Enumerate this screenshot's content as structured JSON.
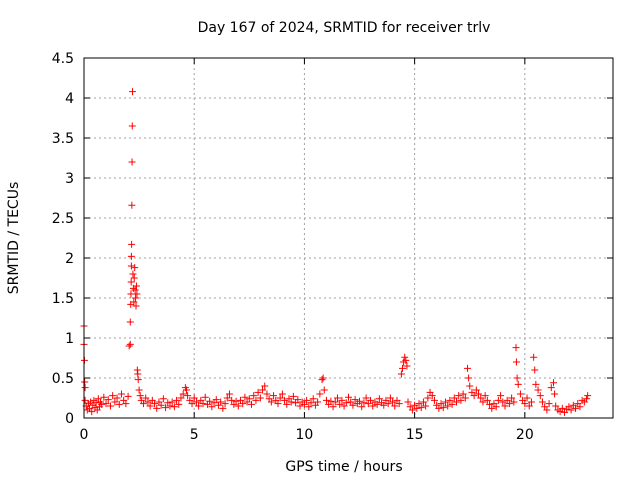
{
  "chart_data": {
    "type": "scatter",
    "title": "Day 167 of 2024, SRMTID for receiver trlv",
    "xlabel": "GPS time / hours",
    "ylabel": "SRMTID / TECUs",
    "xlim": [
      0,
      24
    ],
    "ylim": [
      0,
      4.5
    ],
    "xticks": [
      "0",
      "5",
      "10",
      "15",
      "20"
    ],
    "xtick_values": [
      0,
      5,
      10,
      15,
      20
    ],
    "yticks": [
      "0",
      "0.5",
      "1",
      "1.5",
      "2",
      "2.5",
      "3",
      "3.5",
      "4",
      "4.5"
    ],
    "ytick_values": [
      0,
      0.5,
      1,
      1.5,
      2,
      2.5,
      3,
      3.5,
      4,
      4.5
    ],
    "grid": true,
    "marker": "+",
    "marker_color": "#ff0000",
    "series": [
      {
        "values": [
          [
            0.0,
            1.15
          ],
          [
            0.0,
            0.92
          ],
          [
            0.02,
            0.72
          ],
          [
            0.03,
            0.45
          ],
          [
            0.05,
            0.38
          ],
          [
            0.05,
            0.22
          ],
          [
            0.1,
            0.15
          ],
          [
            0.15,
            0.1
          ],
          [
            0.2,
            0.18
          ],
          [
            0.25,
            0.12
          ],
          [
            0.3,
            0.2
          ],
          [
            0.35,
            0.08
          ],
          [
            0.4,
            0.16
          ],
          [
            0.45,
            0.22
          ],
          [
            0.5,
            0.13
          ],
          [
            0.55,
            0.19
          ],
          [
            0.6,
            0.1
          ],
          [
            0.65,
            0.24
          ],
          [
            0.7,
            0.14
          ],
          [
            0.75,
            0.2
          ],
          [
            0.8,
            0.17
          ],
          [
            0.9,
            0.26
          ],
          [
            1.0,
            0.18
          ],
          [
            1.1,
            0.23
          ],
          [
            1.2,
            0.15
          ],
          [
            1.3,
            0.28
          ],
          [
            1.4,
            0.2
          ],
          [
            1.5,
            0.25
          ],
          [
            1.6,
            0.17
          ],
          [
            1.7,
            0.3
          ],
          [
            1.8,
            0.22
          ],
          [
            1.9,
            0.18
          ],
          [
            2.0,
            0.27
          ],
          [
            2.05,
            0.9
          ],
          [
            2.1,
            0.92
          ],
          [
            2.1,
            1.2
          ],
          [
            2.12,
            1.42
          ],
          [
            2.13,
            1.55
          ],
          [
            2.14,
            1.7
          ],
          [
            2.15,
            1.9
          ],
          [
            2.15,
            2.02
          ],
          [
            2.16,
            2.17
          ],
          [
            2.17,
            2.66
          ],
          [
            2.18,
            3.2
          ],
          [
            2.19,
            3.65
          ],
          [
            2.2,
            4.08
          ],
          [
            2.22,
            1.8
          ],
          [
            2.24,
            1.62
          ],
          [
            2.26,
            1.45
          ],
          [
            2.28,
            1.75
          ],
          [
            2.3,
            1.88
          ],
          [
            2.32,
            1.6
          ],
          [
            2.34,
            1.5
          ],
          [
            2.36,
            1.4
          ],
          [
            2.38,
            1.65
          ],
          [
            2.4,
            1.55
          ],
          [
            2.42,
            0.6
          ],
          [
            2.44,
            0.55
          ],
          [
            2.46,
            0.48
          ],
          [
            2.5,
            0.35
          ],
          [
            2.55,
            0.28
          ],
          [
            2.6,
            0.22
          ],
          [
            2.7,
            0.18
          ],
          [
            2.8,
            0.25
          ],
          [
            2.9,
            0.2
          ],
          [
            3.0,
            0.15
          ],
          [
            3.1,
            0.22
          ],
          [
            3.2,
            0.18
          ],
          [
            3.3,
            0.12
          ],
          [
            3.4,
            0.2
          ],
          [
            3.5,
            0.16
          ],
          [
            3.6,
            0.24
          ],
          [
            3.7,
            0.13
          ],
          [
            3.8,
            0.19
          ],
          [
            3.9,
            0.15
          ],
          [
            4.0,
            0.2
          ],
          [
            4.1,
            0.14
          ],
          [
            4.2,
            0.22
          ],
          [
            4.3,
            0.17
          ],
          [
            4.4,
            0.25
          ],
          [
            4.5,
            0.3
          ],
          [
            4.6,
            0.38
          ],
          [
            4.65,
            0.35
          ],
          [
            4.7,
            0.28
          ],
          [
            4.8,
            0.22
          ],
          [
            4.9,
            0.18
          ],
          [
            5.0,
            0.25
          ],
          [
            5.1,
            0.2
          ],
          [
            5.2,
            0.15
          ],
          [
            5.3,
            0.22
          ],
          [
            5.4,
            0.18
          ],
          [
            5.5,
            0.26
          ],
          [
            5.6,
            0.17
          ],
          [
            5.7,
            0.21
          ],
          [
            5.8,
            0.14
          ],
          [
            5.9,
            0.19
          ],
          [
            6.0,
            0.23
          ],
          [
            6.1,
            0.16
          ],
          [
            6.2,
            0.2
          ],
          [
            6.3,
            0.12
          ],
          [
            6.4,
            0.18
          ],
          [
            6.5,
            0.25
          ],
          [
            6.6,
            0.3
          ],
          [
            6.7,
            0.22
          ],
          [
            6.8,
            0.17
          ],
          [
            6.9,
            0.21
          ],
          [
            7.0,
            0.15
          ],
          [
            7.1,
            0.22
          ],
          [
            7.2,
            0.18
          ],
          [
            7.3,
            0.26
          ],
          [
            7.4,
            0.2
          ],
          [
            7.5,
            0.24
          ],
          [
            7.6,
            0.17
          ],
          [
            7.7,
            0.28
          ],
          [
            7.8,
            0.22
          ],
          [
            7.9,
            0.32
          ],
          [
            8.0,
            0.25
          ],
          [
            8.1,
            0.35
          ],
          [
            8.2,
            0.4
          ],
          [
            8.3,
            0.3
          ],
          [
            8.4,
            0.24
          ],
          [
            8.5,
            0.2
          ],
          [
            8.6,
            0.28
          ],
          [
            8.7,
            0.22
          ],
          [
            8.8,
            0.18
          ],
          [
            8.9,
            0.25
          ],
          [
            9.0,
            0.3
          ],
          [
            9.1,
            0.22
          ],
          [
            9.2,
            0.17
          ],
          [
            9.3,
            0.24
          ],
          [
            9.4,
            0.2
          ],
          [
            9.5,
            0.27
          ],
          [
            9.6,
            0.19
          ],
          [
            9.7,
            0.23
          ],
          [
            9.8,
            0.15
          ],
          [
            9.9,
            0.2
          ],
          [
            10.0,
            0.17
          ],
          [
            10.1,
            0.22
          ],
          [
            10.2,
            0.14
          ],
          [
            10.3,
            0.19
          ],
          [
            10.4,
            0.24
          ],
          [
            10.5,
            0.16
          ],
          [
            10.6,
            0.2
          ],
          [
            10.7,
            0.3
          ],
          [
            10.8,
            0.48
          ],
          [
            10.85,
            0.5
          ],
          [
            10.9,
            0.35
          ],
          [
            11.0,
            0.22
          ],
          [
            11.1,
            0.17
          ],
          [
            11.2,
            0.21
          ],
          [
            11.3,
            0.14
          ],
          [
            11.4,
            0.2
          ],
          [
            11.5,
            0.25
          ],
          [
            11.6,
            0.17
          ],
          [
            11.7,
            0.22
          ],
          [
            11.8,
            0.15
          ],
          [
            11.9,
            0.19
          ],
          [
            12.0,
            0.26
          ],
          [
            12.1,
            0.2
          ],
          [
            12.2,
            0.16
          ],
          [
            12.3,
            0.23
          ],
          [
            12.4,
            0.18
          ],
          [
            12.5,
            0.21
          ],
          [
            12.6,
            0.14
          ],
          [
            12.7,
            0.19
          ],
          [
            12.8,
            0.25
          ],
          [
            12.9,
            0.18
          ],
          [
            13.0,
            0.22
          ],
          [
            13.1,
            0.15
          ],
          [
            13.2,
            0.2
          ],
          [
            13.3,
            0.17
          ],
          [
            13.4,
            0.24
          ],
          [
            13.5,
            0.19
          ],
          [
            13.6,
            0.16
          ],
          [
            13.7,
            0.22
          ],
          [
            13.8,
            0.18
          ],
          [
            13.9,
            0.25
          ],
          [
            14.0,
            0.2
          ],
          [
            14.1,
            0.15
          ],
          [
            14.2,
            0.22
          ],
          [
            14.3,
            0.18
          ],
          [
            14.4,
            0.55
          ],
          [
            14.45,
            0.62
          ],
          [
            14.5,
            0.7
          ],
          [
            14.55,
            0.76
          ],
          [
            14.6,
            0.72
          ],
          [
            14.65,
            0.65
          ],
          [
            14.7,
            0.2
          ],
          [
            14.8,
            0.14
          ],
          [
            14.9,
            0.1
          ],
          [
            15.0,
            0.16
          ],
          [
            15.1,
            0.12
          ],
          [
            15.2,
            0.18
          ],
          [
            15.3,
            0.13
          ],
          [
            15.4,
            0.2
          ],
          [
            15.5,
            0.15
          ],
          [
            15.6,
            0.25
          ],
          [
            15.7,
            0.32
          ],
          [
            15.8,
            0.28
          ],
          [
            15.9,
            0.22
          ],
          [
            16.0,
            0.16
          ],
          [
            16.1,
            0.12
          ],
          [
            16.2,
            0.18
          ],
          [
            16.3,
            0.13
          ],
          [
            16.4,
            0.2
          ],
          [
            16.5,
            0.15
          ],
          [
            16.6,
            0.22
          ],
          [
            16.7,
            0.17
          ],
          [
            16.8,
            0.25
          ],
          [
            16.9,
            0.2
          ],
          [
            17.0,
            0.28
          ],
          [
            17.1,
            0.22
          ],
          [
            17.2,
            0.3
          ],
          [
            17.3,
            0.25
          ],
          [
            17.4,
            0.62
          ],
          [
            17.45,
            0.5
          ],
          [
            17.5,
            0.4
          ],
          [
            17.6,
            0.32
          ],
          [
            17.7,
            0.28
          ],
          [
            17.8,
            0.35
          ],
          [
            17.9,
            0.3
          ],
          [
            18.0,
            0.25
          ],
          [
            18.1,
            0.2
          ],
          [
            18.2,
            0.28
          ],
          [
            18.3,
            0.22
          ],
          [
            18.4,
            0.17
          ],
          [
            18.5,
            0.12
          ],
          [
            18.6,
            0.18
          ],
          [
            18.7,
            0.14
          ],
          [
            18.8,
            0.22
          ],
          [
            18.9,
            0.28
          ],
          [
            19.0,
            0.2
          ],
          [
            19.1,
            0.15
          ],
          [
            19.2,
            0.22
          ],
          [
            19.3,
            0.18
          ],
          [
            19.4,
            0.25
          ],
          [
            19.5,
            0.2
          ],
          [
            19.6,
            0.88
          ],
          [
            19.62,
            0.7
          ],
          [
            19.65,
            0.5
          ],
          [
            19.7,
            0.42
          ],
          [
            19.8,
            0.3
          ],
          [
            19.9,
            0.22
          ],
          [
            20.0,
            0.18
          ],
          [
            20.1,
            0.25
          ],
          [
            20.2,
            0.15
          ],
          [
            20.3,
            0.2
          ],
          [
            20.4,
            0.76
          ],
          [
            20.45,
            0.6
          ],
          [
            20.5,
            0.42
          ],
          [
            20.6,
            0.35
          ],
          [
            20.7,
            0.28
          ],
          [
            20.8,
            0.2
          ],
          [
            20.9,
            0.14
          ],
          [
            21.0,
            0.1
          ],
          [
            21.1,
            0.18
          ],
          [
            21.2,
            0.38
          ],
          [
            21.3,
            0.44
          ],
          [
            21.35,
            0.3
          ],
          [
            21.4,
            0.15
          ],
          [
            21.5,
            0.1
          ],
          [
            21.6,
            0.08
          ],
          [
            21.7,
            0.12
          ],
          [
            21.8,
            0.07
          ],
          [
            21.9,
            0.11
          ],
          [
            22.0,
            0.14
          ],
          [
            22.1,
            0.1
          ],
          [
            22.2,
            0.16
          ],
          [
            22.3,
            0.12
          ],
          [
            22.4,
            0.18
          ],
          [
            22.5,
            0.14
          ],
          [
            22.6,
            0.22
          ],
          [
            22.7,
            0.2
          ],
          [
            22.8,
            0.24
          ],
          [
            22.85,
            0.28
          ]
        ]
      }
    ]
  }
}
